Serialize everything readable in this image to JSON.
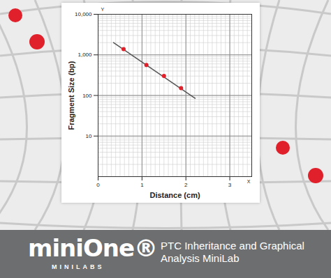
{
  "chart_data": {
    "type": "scatter",
    "log": "y",
    "grid": true,
    "x_label": "Distance (cm)",
    "y_label": "Fragment Size (bp)",
    "xlim": [
      0,
      3.5
    ],
    "xticks": [
      0,
      1,
      2,
      3
    ],
    "ylim": [
      1,
      10000
    ],
    "yticks": [
      10,
      100,
      {
        "value": 1000,
        "label": "1,000"
      },
      {
        "value": 10000,
        "label": "10,000"
      }
    ],
    "annotations": {
      "y_axis_end": "Y",
      "x_axis_end": "X"
    },
    "series": [
      {
        "type": "line",
        "color": "#555555",
        "x": [
          0.35,
          2.21
        ],
        "values": [
          2010,
          85
        ]
      },
      {
        "type": "scatter",
        "color": "#e0202a",
        "marker": "circle",
        "x": [
          0.58,
          1.1,
          1.5,
          1.89
        ],
        "values": [
          1390,
          562,
          302,
          151
        ]
      }
    ]
  },
  "banner": {
    "logo": "miniOne®",
    "logo_sub": "MINILABS",
    "title": "PTC Inheritance and Graphical Analysis MiniLab"
  }
}
